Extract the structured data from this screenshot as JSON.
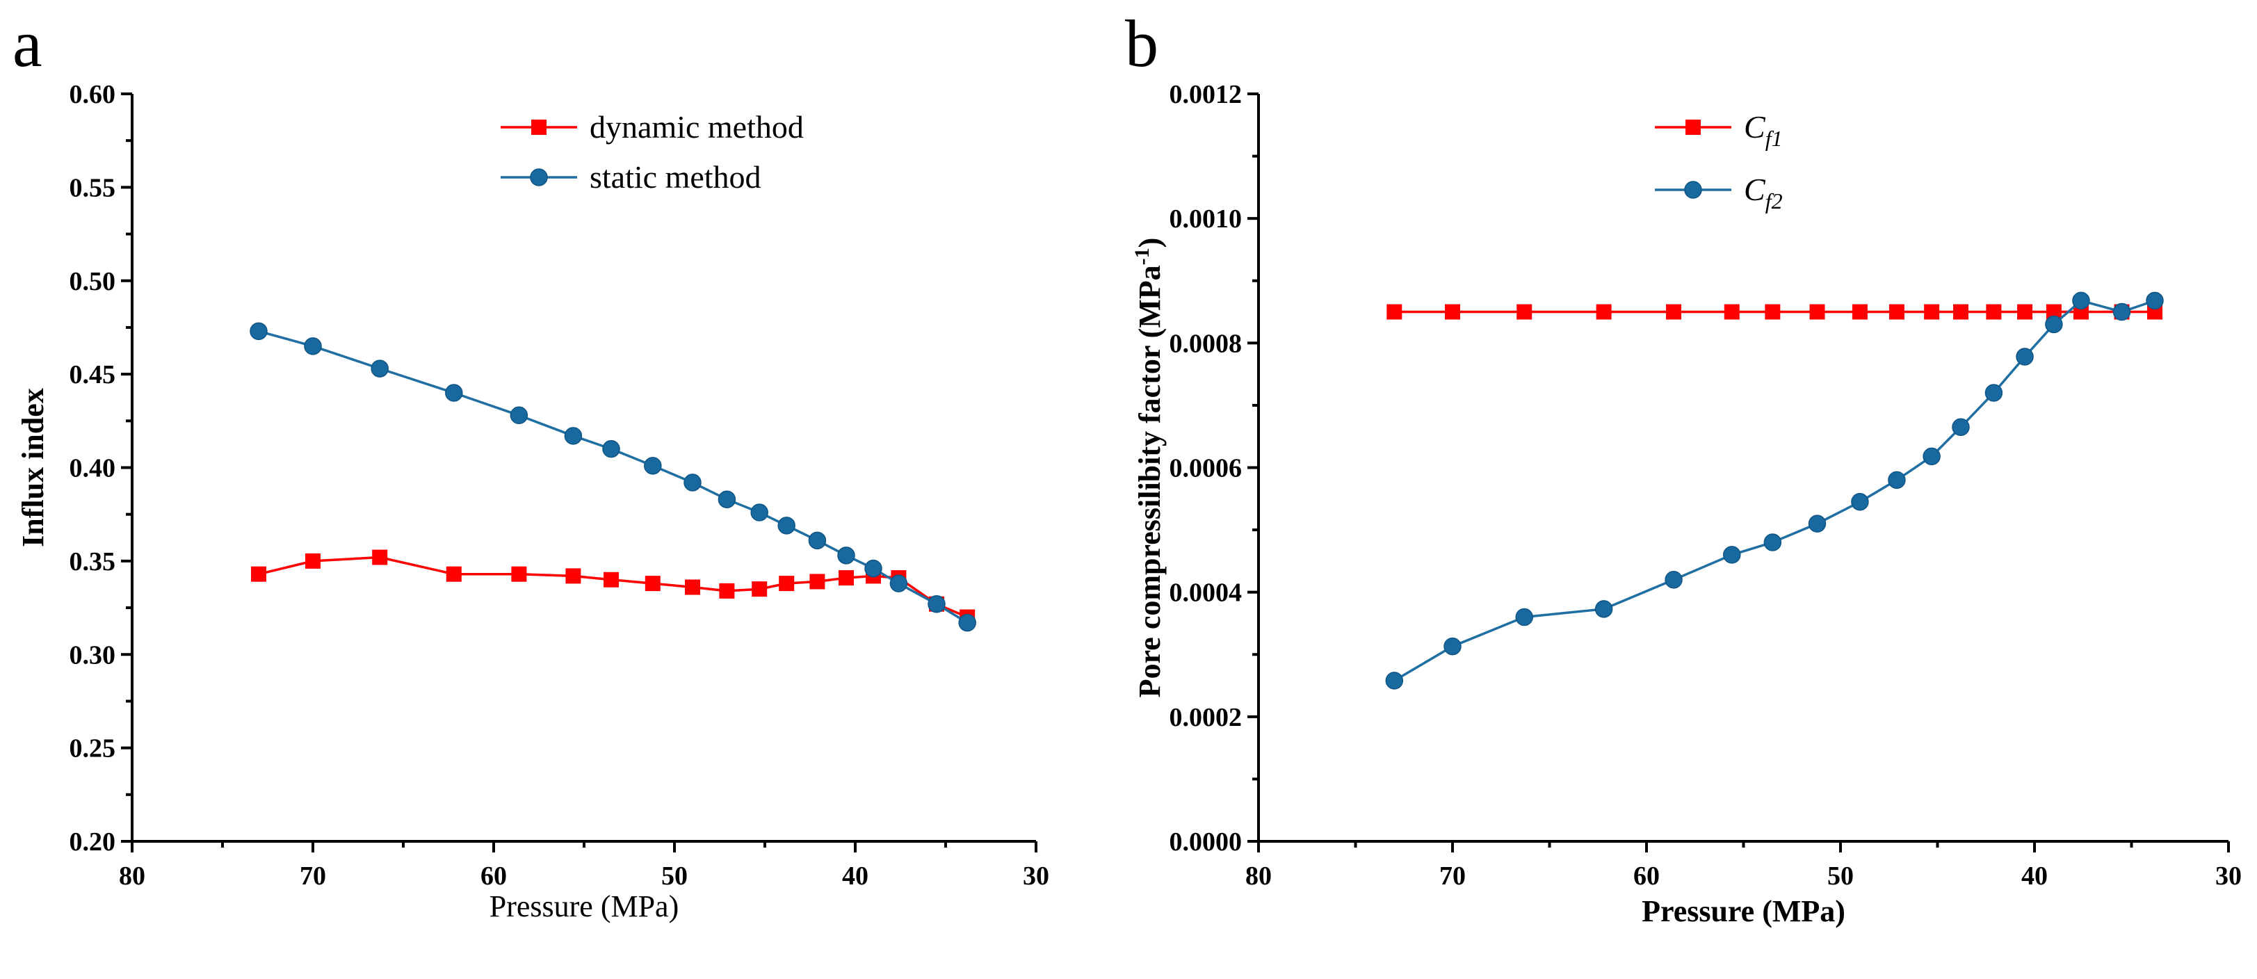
{
  "colors": {
    "red": "#ff0000",
    "blue": "#1f6fa3",
    "blue_fill": "#1769a0"
  },
  "chart_data": [
    {
      "panel": "a",
      "type": "line",
      "title": "",
      "xlabel": "Pressure (MPa)",
      "ylabel": "Influx index",
      "xlim": [
        80,
        30
      ],
      "ylim": [
        0.2,
        0.6
      ],
      "x_reversed": true,
      "xticks": [
        "80",
        "70",
        "60",
        "50",
        "40",
        "30"
      ],
      "xtick_values": [
        80,
        70,
        60,
        50,
        40,
        30
      ],
      "yticks": [
        "0.20",
        "0.25",
        "0.30",
        "0.35",
        "0.40",
        "0.45",
        "0.50",
        "0.55",
        "0.60"
      ],
      "ytick_values": [
        0.2,
        0.25,
        0.3,
        0.35,
        0.4,
        0.45,
        0.5,
        0.55,
        0.6
      ],
      "legend_position": "top-center",
      "series": [
        {
          "name": "dynamic method",
          "marker": "square",
          "color": "#ff0000",
          "x": [
            73.0,
            70.0,
            66.3,
            62.2,
            58.6,
            55.6,
            53.5,
            51.2,
            49.0,
            47.1,
            45.3,
            43.8,
            42.1,
            40.5,
            39.0,
            37.6,
            35.5,
            33.8
          ],
          "y": [
            0.343,
            0.35,
            0.352,
            0.343,
            0.343,
            0.342,
            0.34,
            0.338,
            0.336,
            0.334,
            0.335,
            0.338,
            0.339,
            0.341,
            0.342,
            0.341,
            0.327,
            0.32
          ]
        },
        {
          "name": "static method",
          "marker": "circle",
          "color": "#1f6fa3",
          "x": [
            73.0,
            70.0,
            66.3,
            62.2,
            58.6,
            55.6,
            53.5,
            51.2,
            49.0,
            47.1,
            45.3,
            43.8,
            42.1,
            40.5,
            39.0,
            37.6,
            35.5,
            33.8
          ],
          "y": [
            0.473,
            0.465,
            0.453,
            0.44,
            0.428,
            0.417,
            0.41,
            0.401,
            0.392,
            0.383,
            0.376,
            0.369,
            0.361,
            0.353,
            0.346,
            0.338,
            0.327,
            0.317
          ]
        }
      ]
    },
    {
      "panel": "b",
      "type": "line",
      "title": "",
      "xlabel": "Pressure (MPa)",
      "ylabel": "Pore  compressilibity factor (MPa-1)",
      "ylabel_main": "Pore  compressilibity factor (MPa",
      "ylabel_sup": "-1",
      "ylabel_end": ")",
      "xlim": [
        80,
        30
      ],
      "ylim": [
        0.0,
        0.0012
      ],
      "x_reversed": true,
      "xticks": [
        "80",
        "70",
        "60",
        "50",
        "40",
        "30"
      ],
      "xtick_values": [
        80,
        70,
        60,
        50,
        40,
        30
      ],
      "yticks": [
        "0.0000",
        "0.0002",
        "0.0004",
        "0.0006",
        "0.0008",
        "0.0010",
        "0.0012"
      ],
      "ytick_values": [
        0.0,
        0.0002,
        0.0004,
        0.0006,
        0.0008,
        0.001,
        0.0012
      ],
      "legend_position": "top-center",
      "series": [
        {
          "name": "Cf1",
          "label_main": "C",
          "label_sub": "f1",
          "marker": "square",
          "color": "#ff0000",
          "x": [
            73.0,
            70.0,
            66.3,
            62.2,
            58.6,
            55.6,
            53.5,
            51.2,
            49.0,
            47.1,
            45.3,
            43.8,
            42.1,
            40.5,
            39.0,
            37.6,
            35.5,
            33.8
          ],
          "y": [
            0.00085,
            0.00085,
            0.00085,
            0.00085,
            0.00085,
            0.00085,
            0.00085,
            0.00085,
            0.00085,
            0.00085,
            0.00085,
            0.00085,
            0.00085,
            0.00085,
            0.00085,
            0.00085,
            0.00085,
            0.00085
          ]
        },
        {
          "name": "Cf2",
          "label_main": "C",
          "label_sub": "f2",
          "marker": "circle",
          "color": "#1f6fa3",
          "x": [
            73.0,
            70.0,
            66.3,
            62.2,
            58.6,
            55.6,
            53.5,
            51.2,
            49.0,
            47.1,
            45.3,
            43.8,
            42.1,
            40.5,
            39.0,
            37.6,
            35.5,
            33.8
          ],
          "y": [
            0.000258,
            0.000313,
            0.00036,
            0.000373,
            0.00042,
            0.00046,
            0.00048,
            0.00051,
            0.000545,
            0.00058,
            0.000618,
            0.000665,
            0.00072,
            0.000778,
            0.00083,
            0.000868,
            0.00085,
            0.000868
          ]
        }
      ]
    }
  ]
}
